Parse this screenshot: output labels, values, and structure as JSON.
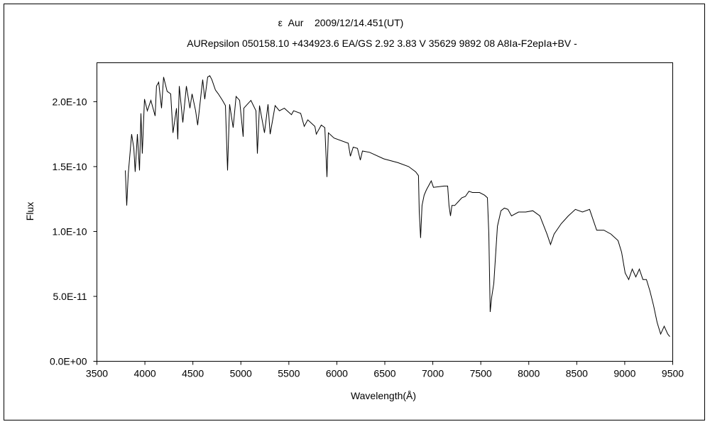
{
  "chart_data": {
    "type": "line",
    "title": "ε  Aur    2009/12/14.451(UT)",
    "subtitle": "AURepsilon 050158.10 +434923.6 EA/GS 2.92 3.83 V 35629 9892 08 A8Ia-F2epIa+BV -",
    "xlabel": "Wavelength(Å)",
    "ylabel": "Flux",
    "xlim": [
      3500,
      9500
    ],
    "ylim": [
      0,
      2.3e-10
    ],
    "xticks": [
      "3500",
      "4000",
      "4500",
      "5000",
      "5500",
      "6000",
      "6500",
      "7000",
      "7500",
      "8000",
      "8500",
      "9000",
      "9500"
    ],
    "xtick_values": [
      3500,
      4000,
      4500,
      5000,
      5500,
      6000,
      6500,
      7000,
      7500,
      8000,
      8500,
      9000,
      9500
    ],
    "yticks": [
      "0.0E+00",
      "5.0E-11",
      "1.0E-10",
      "1.5E-10",
      "2.0E-10"
    ],
    "ytick_values": [
      0,
      5e-11,
      1e-10,
      1.5e-10,
      2e-10
    ],
    "grid": false,
    "line_color": "#000000",
    "series": [
      {
        "x": [
          3796,
          3811,
          3826,
          3862,
          3885,
          3899,
          3922,
          3944,
          3959,
          3973,
          3996,
          4025,
          4062,
          4107,
          4121,
          4144,
          4173,
          4195,
          4232,
          4269,
          4292,
          4329,
          4343,
          4358,
          4395,
          4432,
          4469,
          4491,
          4528,
          4550,
          4588,
          4602,
          4624,
          4654,
          4676,
          4698,
          4735,
          4765,
          4809,
          4839,
          4861,
          4883,
          4920,
          4950,
          4987,
          5024,
          5031,
          5105,
          5157,
          5172,
          5194,
          5246,
          5283,
          5305,
          5357,
          5401,
          5453,
          5527,
          5549,
          5623,
          5660,
          5697,
          5771,
          5786,
          5838,
          5875,
          5897,
          5912,
          5971,
          6119,
          6141,
          6171,
          6215,
          6245,
          6267,
          6341,
          6489,
          6637,
          6748,
          6822,
          6851,
          6859,
          6873,
          6888,
          6910,
          6933,
          6962,
          6984,
          7007,
          7118,
          7155,
          7169,
          7184,
          7199,
          7229,
          7266,
          7303,
          7340,
          7377,
          7413,
          7487,
          7539,
          7569,
          7584,
          7598,
          7613,
          7636,
          7673,
          7710,
          7746,
          7783,
          7820,
          7894,
          7968,
          8042,
          8116,
          8190,
          8227,
          8264,
          8338,
          8412,
          8486,
          8560,
          8634,
          8708,
          8782,
          8856,
          8930,
          8967,
          9004,
          9041,
          9078,
          9115,
          9152,
          9189,
          9226,
          9263,
          9300,
          9337,
          9374,
          9411,
          9448,
          9470
        ],
        "y": [
          1.47e-10,
          1.2e-10,
          1.44e-10,
          1.75e-10,
          1.64e-10,
          1.46e-10,
          1.75e-10,
          1.47e-10,
          1.91e-10,
          1.6e-10,
          2.02e-10,
          1.93e-10,
          2.01e-10,
          1.89e-10,
          2.12e-10,
          2.15e-10,
          1.95e-10,
          2.19e-10,
          2.08e-10,
          2.06e-10,
          1.76e-10,
          1.95e-10,
          1.71e-10,
          2.12e-10,
          1.84e-10,
          2.12e-10,
          1.95e-10,
          2.06e-10,
          1.93e-10,
          1.82e-10,
          2.08e-10,
          2.17e-10,
          2.02e-10,
          2.19e-10,
          2.2e-10,
          2.17e-10,
          2.09e-10,
          2.06e-10,
          2.01e-10,
          1.97e-10,
          1.47e-10,
          1.98e-10,
          1.8e-10,
          2.04e-10,
          2.01e-10,
          1.73e-10,
          1.95e-10,
          2.01e-10,
          1.93e-10,
          1.6e-10,
          1.97e-10,
          1.76e-10,
          1.98e-10,
          1.75e-10,
          1.97e-10,
          1.93e-10,
          1.95e-10,
          1.9e-10,
          1.93e-10,
          1.91e-10,
          1.81e-10,
          1.86e-10,
          1.81e-10,
          1.75e-10,
          1.82e-10,
          1.8e-10,
          1.42e-10,
          1.76e-10,
          1.72e-10,
          1.68e-10,
          1.58e-10,
          1.65e-10,
          1.64e-10,
          1.55e-10,
          1.62e-10,
          1.61e-10,
          1.56e-10,
          1.53e-10,
          1.5e-10,
          1.46e-10,
          1.43e-10,
          1.15e-10,
          9.5e-11,
          1.2e-10,
          1.28e-10,
          1.32e-10,
          1.36e-10,
          1.39e-10,
          1.34e-10,
          1.35e-10,
          1.35e-10,
          1.2e-10,
          1.12e-10,
          1.2e-10,
          1.2e-10,
          1.23e-10,
          1.26e-10,
          1.27e-10,
          1.31e-10,
          1.3e-10,
          1.3e-10,
          1.28e-10,
          1.26e-10,
          9.8e-11,
          3.8e-11,
          4.9e-11,
          6e-11,
          1.04e-10,
          1.16e-10,
          1.18e-10,
          1.17e-10,
          1.12e-10,
          1.15e-10,
          1.15e-10,
          1.16e-10,
          1.12e-10,
          9.8e-11,
          9e-11,
          9.8e-11,
          1.06e-10,
          1.12e-10,
          1.17e-10,
          1.15e-10,
          1.17e-10,
          1.01e-10,
          1.01e-10,
          9.8e-11,
          9.3e-11,
          8.4e-11,
          6.8e-11,
          6.3e-11,
          7.1e-11,
          6.5e-11,
          7.1e-11,
          6.3e-11,
          6.3e-11,
          5.4e-11,
          4.3e-11,
          3e-11,
          2.1e-11,
          2.7e-11,
          2.1e-11,
          1.9e-11
        ]
      }
    ]
  }
}
